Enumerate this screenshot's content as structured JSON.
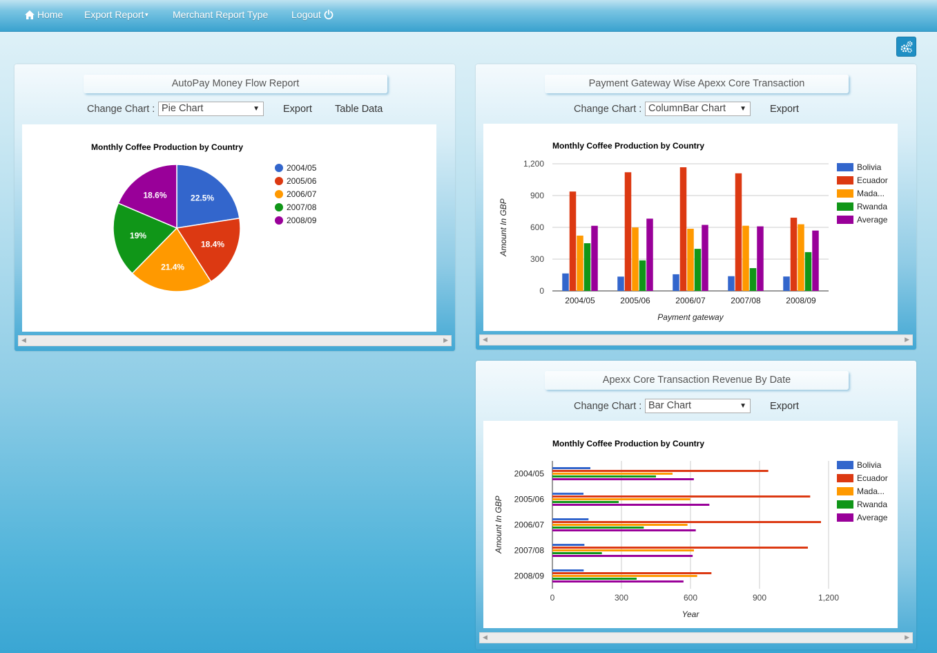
{
  "nav": {
    "home": "Home",
    "export_report": "Export Report",
    "merchant_report_type": "Merchant Report Type",
    "logout": "Logout"
  },
  "colors": {
    "Bolivia": "#3366cc",
    "Ecuador": "#dc3912",
    "Madagascar": "#ff9900",
    "Rwanda": "#109618",
    "Average": "#990099"
  },
  "icons": [
    "home-icon",
    "caret-down-icon",
    "power-icon",
    "settings-icon",
    "dropdown-arrow-icon",
    "scroll-left-icon",
    "scroll-right-icon"
  ],
  "panel1": {
    "title": "AutoPay Money Flow Report",
    "change_chart_label": "Change Chart :",
    "select_value": "Pie Chart",
    "export": "Export",
    "table_data": "Table Data"
  },
  "panel2": {
    "title": "Payment Gateway Wise Apexx Core Transaction",
    "change_chart_label": "Change Chart :",
    "select_value": "ColumnBar Chart",
    "export": "Export"
  },
  "panel3": {
    "title": "Apexx Core Transaction Revenue By Date",
    "change_chart_label": "Change Chart :",
    "select_value": "Bar Chart",
    "export": "Export"
  },
  "chart_data": [
    {
      "type": "pie",
      "title": "Monthly Coffee Production by Country",
      "categories": [
        "2004/05",
        "2005/06",
        "2006/07",
        "2007/08",
        "2008/09"
      ],
      "values": [
        22.5,
        18.4,
        21.4,
        19,
        18.6
      ],
      "labels": [
        "22.5%",
        "18.4%",
        "21.4%",
        "19%",
        "18.6%"
      ],
      "legend": "right"
    },
    {
      "type": "bar",
      "orientation": "vertical",
      "title": "Monthly Coffee Production by Country",
      "xlabel": "Payment gateway",
      "ylabel": "Amount In GBP",
      "categories": [
        "2004/05",
        "2005/06",
        "2006/07",
        "2007/08",
        "2008/09"
      ],
      "ylim": [
        0,
        1200
      ],
      "yticks": [
        "0",
        "300",
        "600",
        "900",
        "1,200"
      ],
      "series": [
        {
          "name": "Bolivia",
          "values": [
            165,
            135,
            157,
            139,
            136
          ]
        },
        {
          "name": "Ecuador",
          "values": [
            938,
            1120,
            1167,
            1110,
            691
          ]
        },
        {
          "name": "Mada...",
          "values": [
            522,
            599,
            587,
            615,
            629
          ]
        },
        {
          "name": "Rwanda",
          "values": [
            450,
            288,
            397,
            215,
            366
          ]
        },
        {
          "name": "Average",
          "values": [
            614.6,
            682,
            623,
            609.4,
            569.6
          ]
        }
      ],
      "legend": "right"
    },
    {
      "type": "bar",
      "orientation": "horizontal",
      "title": "Monthly Coffee Production by Country",
      "xlabel": "Year",
      "ylabel": "Amount In GBP",
      "categories": [
        "2004/05",
        "2005/06",
        "2006/07",
        "2007/08",
        "2008/09"
      ],
      "xlim": [
        0,
        1200
      ],
      "xticks": [
        "0",
        "300",
        "600",
        "900",
        "1,200"
      ],
      "series": [
        {
          "name": "Bolivia",
          "values": [
            165,
            135,
            157,
            139,
            136
          ]
        },
        {
          "name": "Ecuador",
          "values": [
            938,
            1120,
            1167,
            1110,
            691
          ]
        },
        {
          "name": "Mada...",
          "values": [
            522,
            599,
            587,
            615,
            629
          ]
        },
        {
          "name": "Rwanda",
          "values": [
            450,
            288,
            397,
            215,
            366
          ]
        },
        {
          "name": "Average",
          "values": [
            614.6,
            682,
            623,
            609.4,
            569.6
          ]
        }
      ],
      "legend": "right"
    }
  ]
}
